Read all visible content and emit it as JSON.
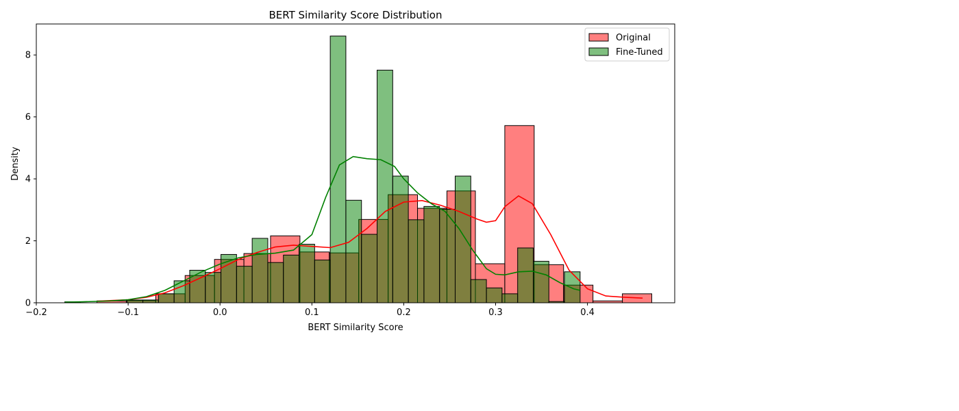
{
  "chart_data": {
    "type": "histogram",
    "title": "BERT Similarity Score Distribution",
    "xlabel": "BERT Similarity Score",
    "ylabel": "Density",
    "xlim": [
      -0.2,
      0.495
    ],
    "ylim": [
      0,
      9.0
    ],
    "xticks": [
      -0.2,
      -0.1,
      0.0,
      0.1,
      0.2,
      0.3,
      0.4
    ],
    "xtick_labels": [
      "−0.2",
      "−0.1",
      "0.0",
      "0.1",
      "0.2",
      "0.3",
      "0.4"
    ],
    "yticks": [
      0,
      2,
      4,
      6,
      8
    ],
    "ytick_labels": [
      "0",
      "2",
      "4",
      "6",
      "8"
    ],
    "grid": false,
    "legend_position": "top-right",
    "series": [
      {
        "name": "Original",
        "color": "#ff0000",
        "fill_alpha": 0.5,
        "bins": [
          {
            "x0": -0.134,
            "x1": -0.102,
            "density": 0.06
          },
          {
            "x0": -0.102,
            "x1": -0.07,
            "density": 0.07
          },
          {
            "x0": -0.07,
            "x1": -0.038,
            "density": 0.29
          },
          {
            "x0": -0.038,
            "x1": -0.006,
            "density": 0.88
          },
          {
            "x0": -0.006,
            "x1": 0.026,
            "density": 1.4
          },
          {
            "x0": 0.026,
            "x1": 0.055,
            "density": 1.59
          },
          {
            "x0": 0.055,
            "x1": 0.087,
            "density": 2.16
          },
          {
            "x0": 0.087,
            "x1": 0.119,
            "density": 1.64
          },
          {
            "x0": 0.119,
            "x1": 0.151,
            "density": 1.61
          },
          {
            "x0": 0.151,
            "x1": 0.183,
            "density": 2.69
          },
          {
            "x0": 0.183,
            "x1": 0.215,
            "density": 3.49
          },
          {
            "x0": 0.215,
            "x1": 0.247,
            "density": 3.05
          },
          {
            "x0": 0.247,
            "x1": 0.278,
            "density": 3.61
          },
          {
            "x0": 0.278,
            "x1": 0.31,
            "density": 1.26
          },
          {
            "x0": 0.31,
            "x1": 0.342,
            "density": 5.72
          },
          {
            "x0": 0.342,
            "x1": 0.374,
            "density": 1.23
          },
          {
            "x0": 0.374,
            "x1": 0.406,
            "density": 0.57
          },
          {
            "x0": 0.406,
            "x1": 0.438,
            "density": 0.06
          },
          {
            "x0": 0.438,
            "x1": 0.47,
            "density": 0.29
          }
        ],
        "kde": [
          [
            -0.134,
            0.05
          ],
          [
            -0.12,
            0.07
          ],
          [
            -0.1,
            0.1
          ],
          [
            -0.08,
            0.18
          ],
          [
            -0.06,
            0.32
          ],
          [
            -0.04,
            0.55
          ],
          [
            -0.02,
            0.82
          ],
          [
            0.0,
            1.1
          ],
          [
            0.02,
            1.4
          ],
          [
            0.04,
            1.62
          ],
          [
            0.06,
            1.8
          ],
          [
            0.08,
            1.86
          ],
          [
            0.1,
            1.82
          ],
          [
            0.12,
            1.78
          ],
          [
            0.14,
            1.95
          ],
          [
            0.16,
            2.4
          ],
          [
            0.18,
            2.95
          ],
          [
            0.2,
            3.25
          ],
          [
            0.22,
            3.3
          ],
          [
            0.24,
            3.15
          ],
          [
            0.26,
            2.95
          ],
          [
            0.28,
            2.7
          ],
          [
            0.29,
            2.6
          ],
          [
            0.3,
            2.65
          ],
          [
            0.31,
            3.1
          ],
          [
            0.325,
            3.45
          ],
          [
            0.34,
            3.2
          ],
          [
            0.36,
            2.2
          ],
          [
            0.38,
            1.05
          ],
          [
            0.4,
            0.45
          ],
          [
            0.42,
            0.22
          ],
          [
            0.44,
            0.18
          ],
          [
            0.46,
            0.15
          ]
        ]
      },
      {
        "name": "Fine-Tuned",
        "color": "#008000",
        "fill_alpha": 0.5,
        "bins": [
          {
            "x0": -0.169,
            "x1": -0.152,
            "density": 0.03
          },
          {
            "x0": -0.101,
            "x1": -0.084,
            "density": 0.09
          },
          {
            "x0": -0.084,
            "x1": -0.067,
            "density": 0.09
          },
          {
            "x0": -0.067,
            "x1": -0.05,
            "density": 0.29
          },
          {
            "x0": -0.05,
            "x1": -0.033,
            "density": 0.71
          },
          {
            "x0": -0.033,
            "x1": -0.016,
            "density": 1.05
          },
          {
            "x0": -0.016,
            "x1": 0.001,
            "density": 0.98
          },
          {
            "x0": 0.001,
            "x1": 0.018,
            "density": 1.56
          },
          {
            "x0": 0.018,
            "x1": 0.035,
            "density": 1.18
          },
          {
            "x0": 0.035,
            "x1": 0.052,
            "density": 2.08
          },
          {
            "x0": 0.052,
            "x1": 0.069,
            "density": 1.3
          },
          {
            "x0": 0.069,
            "x1": 0.086,
            "density": 1.54
          },
          {
            "x0": 0.086,
            "x1": 0.103,
            "density": 1.89
          },
          {
            "x0": 0.103,
            "x1": 0.12,
            "density": 1.38
          },
          {
            "x0": 0.12,
            "x1": 0.137,
            "density": 8.61
          },
          {
            "x0": 0.137,
            "x1": 0.154,
            "density": 3.31
          },
          {
            "x0": 0.154,
            "x1": 0.171,
            "density": 2.21
          },
          {
            "x0": 0.171,
            "x1": 0.188,
            "density": 7.51
          },
          {
            "x0": 0.188,
            "x1": 0.205,
            "density": 4.09
          },
          {
            "x0": 0.205,
            "x1": 0.222,
            "density": 2.68
          },
          {
            "x0": 0.222,
            "x1": 0.239,
            "density": 3.11
          },
          {
            "x0": 0.239,
            "x1": 0.256,
            "density": 3.02
          },
          {
            "x0": 0.256,
            "x1": 0.273,
            "density": 4.09
          },
          {
            "x0": 0.273,
            "x1": 0.29,
            "density": 0.75
          },
          {
            "x0": 0.29,
            "x1": 0.307,
            "density": 0.48
          },
          {
            "x0": 0.307,
            "x1": 0.324,
            "density": 0.29
          },
          {
            "x0": 0.324,
            "x1": 0.341,
            "density": 1.77
          },
          {
            "x0": 0.341,
            "x1": 0.358,
            "density": 1.34
          },
          {
            "x0": 0.358,
            "x1": 0.375,
            "density": 0.04
          },
          {
            "x0": 0.375,
            "x1": 0.392,
            "density": 1.0
          }
        ],
        "kde": [
          [
            -0.169,
            0.02
          ],
          [
            -0.15,
            0.03
          ],
          [
            -0.12,
            0.06
          ],
          [
            -0.1,
            0.1
          ],
          [
            -0.08,
            0.2
          ],
          [
            -0.06,
            0.4
          ],
          [
            -0.04,
            0.7
          ],
          [
            -0.02,
            1.0
          ],
          [
            0.0,
            1.25
          ],
          [
            0.02,
            1.45
          ],
          [
            0.04,
            1.56
          ],
          [
            0.06,
            1.6
          ],
          [
            0.08,
            1.7
          ],
          [
            0.1,
            2.2
          ],
          [
            0.115,
            3.4
          ],
          [
            0.13,
            4.45
          ],
          [
            0.145,
            4.72
          ],
          [
            0.16,
            4.65
          ],
          [
            0.175,
            4.62
          ],
          [
            0.19,
            4.4
          ],
          [
            0.2,
            4.0
          ],
          [
            0.215,
            3.55
          ],
          [
            0.23,
            3.2
          ],
          [
            0.245,
            2.95
          ],
          [
            0.26,
            2.4
          ],
          [
            0.275,
            1.7
          ],
          [
            0.29,
            1.1
          ],
          [
            0.3,
            0.92
          ],
          [
            0.31,
            0.9
          ],
          [
            0.325,
            1.0
          ],
          [
            0.34,
            1.02
          ],
          [
            0.355,
            0.9
          ],
          [
            0.37,
            0.65
          ],
          [
            0.385,
            0.45
          ],
          [
            0.392,
            0.4
          ]
        ]
      }
    ]
  }
}
